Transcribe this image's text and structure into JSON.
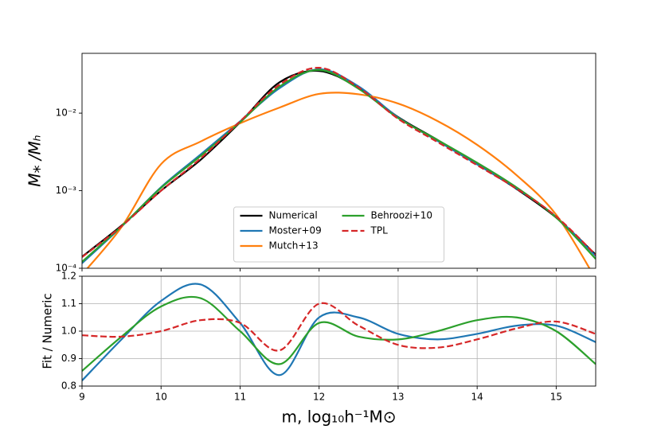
{
  "chart_data": [
    {
      "type": "line",
      "ylabel": "M⁎ /Mₕ",
      "log_scale": true,
      "legend": "lower center",
      "x": [
        9,
        9.5,
        10,
        10.5,
        11,
        11.5,
        12,
        12.5,
        13,
        13.5,
        14,
        14.5,
        15,
        15.5
      ],
      "xlim": [
        9,
        15.5
      ],
      "ylim": [
        0.0001,
        0.059
      ],
      "yticks": [
        {
          "value": 0.0001,
          "label": "10⁻⁴"
        },
        {
          "value": 0.001,
          "label": "10⁻³"
        },
        {
          "value": 0.01,
          "label": "10⁻²"
        }
      ],
      "series": [
        {
          "name": "Numerical",
          "color": "#000000",
          "values": [
            0.000141,
            0.000355,
            0.001,
            0.0025,
            0.0076,
            0.025,
            0.035,
            0.021,
            0.0089,
            0.0045,
            0.0022,
            0.00105,
            0.00045,
            0.00015
          ]
        },
        {
          "name": "Moster+09",
          "color": "#1f77b4",
          "values": [
            0.000116,
            0.000344,
            0.00111,
            0.00293,
            0.00783,
            0.021,
            0.0368,
            0.0221,
            0.0088,
            0.00437,
            0.00218,
            0.00107,
            0.00046,
            0.000144
          ]
        },
        {
          "name": "Mutch+13",
          "color": "#ff7f0e",
          "values": [
            8.3e-05,
            0.00034,
            0.0022,
            0.0043,
            0.0074,
            0.0118,
            0.0177,
            0.0175,
            0.0133,
            0.0079,
            0.0039,
            0.00158,
            0.00049,
            7.3e-05
          ]
        },
        {
          "name": "Behroozi+10",
          "color": "#2ca02c",
          "values": [
            0.000121,
            0.000348,
            0.00109,
            0.0028,
            0.0076,
            0.022,
            0.036,
            0.0206,
            0.00863,
            0.0045,
            0.00229,
            0.0011,
            0.00045,
            0.000132
          ]
        },
        {
          "name": "TPL",
          "color": "#d62728",
          "linestyle": "dashed",
          "values": [
            0.000139,
            0.000348,
            0.001,
            0.0026,
            0.00783,
            0.0233,
            0.0385,
            0.0214,
            0.00846,
            0.00423,
            0.00213,
            0.00106,
            0.000466,
            0.000149
          ]
        }
      ]
    },
    {
      "type": "line",
      "xlabel": "m, log₁₀h⁻¹M⊙",
      "ylabel": "Fit / Numeric",
      "grid": true,
      "x": [
        9,
        9.5,
        10,
        10.5,
        11,
        11.5,
        12,
        12.5,
        13,
        13.5,
        14,
        14.5,
        15,
        15.5
      ],
      "xlim": [
        9,
        15.5
      ],
      "xticks": [
        9,
        10,
        11,
        12,
        13,
        14,
        15
      ],
      "ylim": [
        0.8,
        1.2
      ],
      "yticks": [
        0.8,
        0.9,
        {
          "value": 1,
          "label": "1.0"
        },
        1.1,
        1.2
      ],
      "series": [
        {
          "color": "#1f77b4",
          "values": [
            0.82,
            0.97,
            1.11,
            1.17,
            1.03,
            0.84,
            1.05,
            1.05,
            0.99,
            0.97,
            0.99,
            1.02,
            1.02,
            0.96
          ]
        },
        {
          "color": "#2ca02c",
          "values": [
            0.855,
            0.98,
            1.09,
            1.12,
            1.0,
            0.88,
            1.03,
            0.98,
            0.97,
            1.0,
            1.04,
            1.05,
            1.0,
            0.88
          ]
        },
        {
          "color": "#d62728",
          "linestyle": "dashed",
          "values": [
            0.985,
            0.98,
            1.0,
            1.04,
            1.03,
            0.93,
            1.1,
            1.02,
            0.95,
            0.94,
            0.97,
            1.01,
            1.035,
            0.99
          ]
        }
      ]
    }
  ]
}
